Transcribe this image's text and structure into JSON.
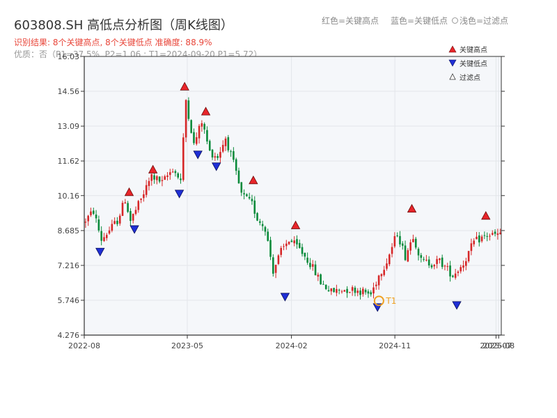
{
  "title": "603808.SH 高低点分析图（周K线图）",
  "subtitle1": "识别结果: 8个关键高点, 8个关键低点   准确度: 88.9%",
  "subtitle2": "优质：否（P1=37.5%, P2=1.06 ; T1=2024-09-20 P1=5.72）",
  "top_legend": {
    "red": "红色=关键高点",
    "blue": "蓝色=关键低点",
    "light": "浅色=过滤点"
  },
  "colors": {
    "up": "#d62728",
    "down": "#0a8a3a",
    "high_marker": "#e8252a",
    "low_marker": "#1f2fd6",
    "t1": "#f0a020",
    "plot_bg": "#f5f7fa"
  },
  "chart_data": {
    "type": "candlestick",
    "title": "603808.SH 高低点分析图（周K线图）",
    "y_ticks": [
      "4.276",
      "5.746",
      "7.216",
      "8.685",
      "10.16",
      "11.62",
      "13.09",
      "14.56",
      "16.03"
    ],
    "ylim": [
      4.276,
      16.03
    ],
    "xlim": [
      "2022-08-01",
      "2025-08-10"
    ],
    "x_ticks": [
      {
        "date": "2022-08-01",
        "label": "2022-08"
      },
      {
        "date": "2023-05-01",
        "label": "2023-05"
      },
      {
        "date": "2024-02-01",
        "label": "2024-02"
      },
      {
        "date": "2024-11-01",
        "label": "2024-11"
      },
      {
        "date": "2025-07-27",
        "label": "2025-07"
      },
      {
        "date": "2025-08-03",
        "label": "2025-08"
      }
    ],
    "grid": true,
    "legend_position": "top-right",
    "legend": {
      "high": "关键高点",
      "low": "关键低点",
      "filtered": "过滤点"
    },
    "price_path": [
      [
        "2022-08-01",
        9.0
      ],
      [
        "2022-08-29",
        9.5
      ],
      [
        "2022-09-19",
        8.3
      ],
      [
        "2022-10-31",
        9.1
      ],
      [
        "2022-11-21",
        10.0
      ],
      [
        "2022-12-05",
        9.1
      ],
      [
        "2023-01-02",
        10.0
      ],
      [
        "2023-01-30",
        11.0
      ],
      [
        "2023-02-27",
        10.7
      ],
      [
        "2023-03-27",
        11.3
      ],
      [
        "2023-04-17",
        10.8
      ],
      [
        "2023-05-01",
        14.2
      ],
      [
        "2023-05-22",
        12.3
      ],
      [
        "2023-06-12",
        13.3
      ],
      [
        "2023-07-03",
        12.0
      ],
      [
        "2023-07-24",
        11.8
      ],
      [
        "2023-08-14",
        12.6
      ],
      [
        "2023-09-04",
        11.5
      ],
      [
        "2023-09-25",
        10.2
      ],
      [
        "2023-10-23",
        9.8
      ],
      [
        "2023-11-06",
        9.2
      ],
      [
        "2023-11-27",
        8.8
      ],
      [
        "2023-12-18",
        7.0
      ],
      [
        "2024-01-08",
        7.8
      ],
      [
        "2024-01-29",
        8.3
      ],
      [
        "2024-02-26",
        7.9
      ],
      [
        "2024-03-25",
        7.3
      ],
      [
        "2024-04-22",
        6.5
      ],
      [
        "2024-05-20",
        6.1
      ],
      [
        "2024-06-17",
        6.2
      ],
      [
        "2024-07-22",
        6.2
      ],
      [
        "2024-09-02",
        6.0
      ],
      [
        "2024-09-23",
        6.8
      ],
      [
        "2024-10-14",
        7.4
      ],
      [
        "2024-11-11",
        8.6
      ],
      [
        "2024-12-02",
        7.6
      ],
      [
        "2024-12-23",
        8.5
      ],
      [
        "2025-01-13",
        7.4
      ],
      [
        "2025-02-10",
        7.3
      ],
      [
        "2025-03-03",
        7.4
      ],
      [
        "2025-04-07",
        6.8
      ],
      [
        "2025-05-05",
        7.3
      ],
      [
        "2025-06-02",
        8.2
      ],
      [
        "2025-07-07",
        8.5
      ],
      [
        "2025-08-10",
        8.5
      ]
    ],
    "key_highs": [
      {
        "date": "2022-11-28",
        "value": 10.1
      },
      {
        "date": "2023-01-30",
        "value": 11.05
      },
      {
        "date": "2023-04-24",
        "value": 14.55
      },
      {
        "date": "2023-06-19",
        "value": 13.5
      },
      {
        "date": "2023-10-23",
        "value": 10.6
      },
      {
        "date": "2024-02-12",
        "value": 8.7
      },
      {
        "date": "2024-12-16",
        "value": 9.4
      },
      {
        "date": "2025-06-30",
        "value": 9.1
      }
    ],
    "key_lows": [
      {
        "date": "2022-09-12",
        "value": 8.0
      },
      {
        "date": "2022-12-12",
        "value": 8.95
      },
      {
        "date": "2023-04-10",
        "value": 10.45
      },
      {
        "date": "2023-05-29",
        "value": 12.1
      },
      {
        "date": "2023-07-17",
        "value": 11.6
      },
      {
        "date": "2024-01-15",
        "value": 6.1
      },
      {
        "date": "2024-09-16",
        "value": 5.66
      },
      {
        "date": "2025-04-14",
        "value": 5.75
      }
    ],
    "t1_marker": {
      "date": "2024-09-20",
      "value": 5.72,
      "label": "T1"
    }
  }
}
